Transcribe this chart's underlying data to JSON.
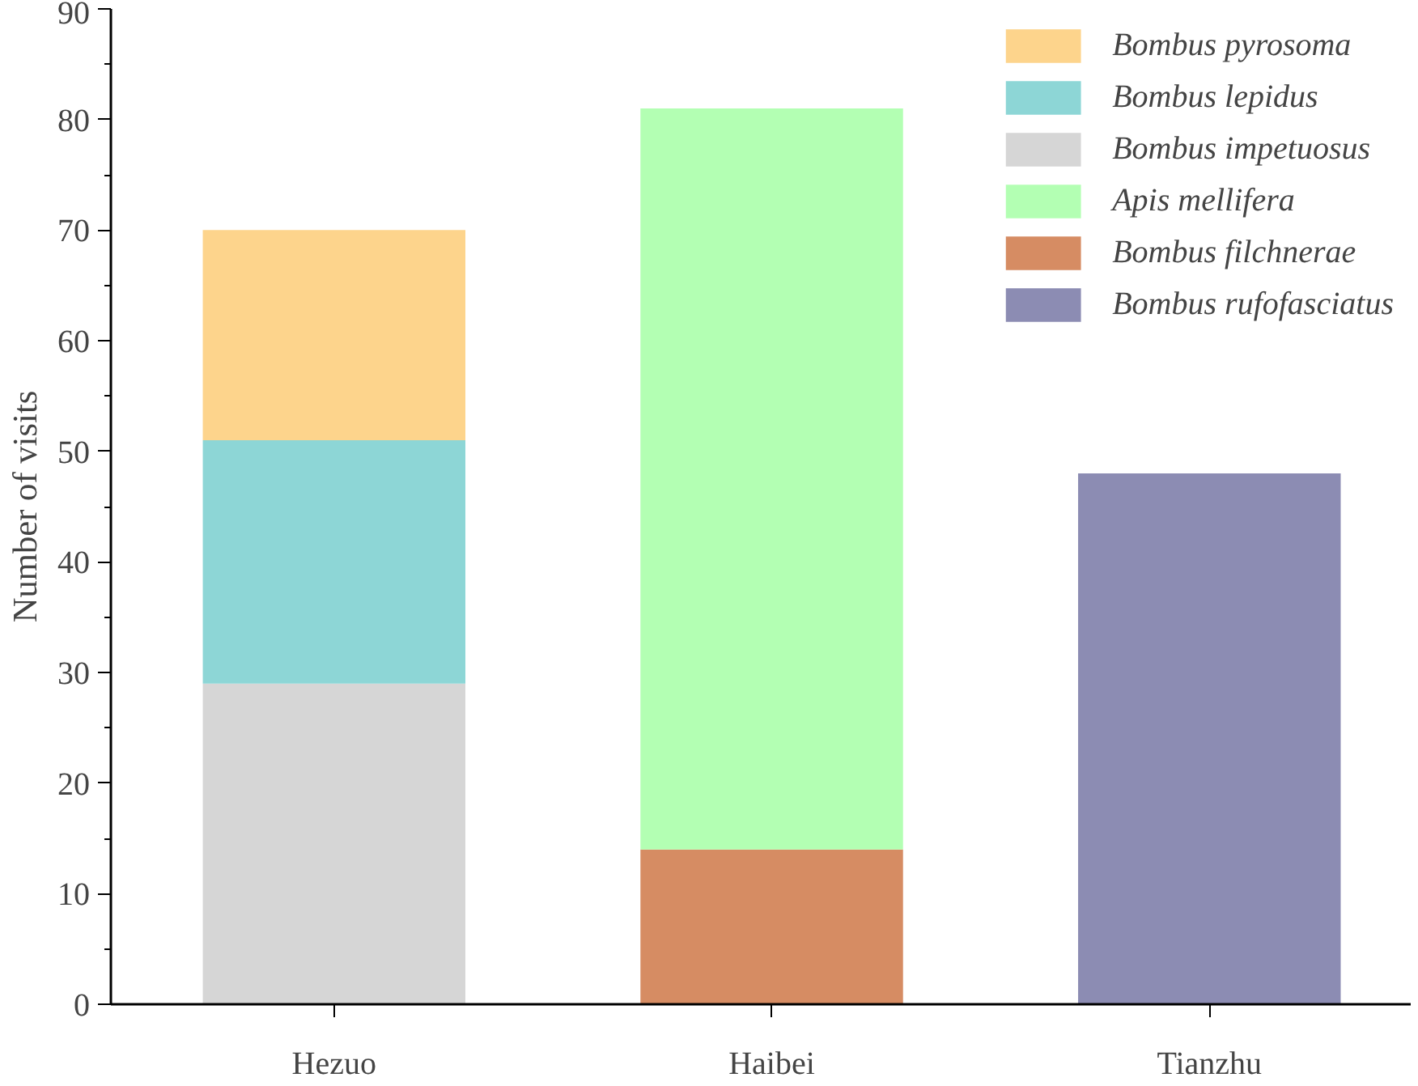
{
  "chart_data": {
    "type": "bar",
    "stacked": true,
    "ylabel": "Number of visits",
    "categories": [
      "Hezuo",
      "Haibei",
      "Tianzhu"
    ],
    "ylim": [
      0,
      90
    ],
    "yticks": [
      0,
      10,
      20,
      30,
      40,
      50,
      60,
      70,
      80,
      90
    ],
    "grid": false,
    "legend": "top right",
    "series": [
      {
        "name": "Bombus rufofasciatus",
        "color": "#8c8cb3",
        "values": [
          null,
          null,
          48
        ]
      },
      {
        "name": "Bombus filchnerae",
        "color": "#d68c63",
        "values": [
          null,
          14,
          null
        ]
      },
      {
        "name": "Apis mellifera",
        "color": "#b3ffb3",
        "values": [
          null,
          67,
          null
        ]
      },
      {
        "name": "Bombus impetuosus",
        "color": "#d6d6d6",
        "values": [
          29,
          null,
          null
        ]
      },
      {
        "name": "Bombus lepidus",
        "color": "#8dd6d6",
        "values": [
          22,
          null,
          null
        ]
      },
      {
        "name": "Bombus pyrosoma",
        "color": "#fdd48c",
        "values": [
          19,
          null,
          null
        ]
      }
    ]
  }
}
